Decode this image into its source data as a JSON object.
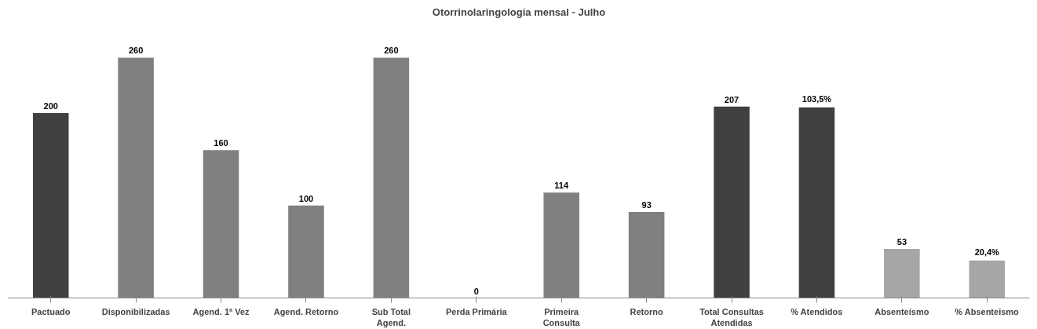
{
  "chart_data": {
    "type": "bar",
    "title": "Otorrinolaringologia mensal - Julho",
    "categories": [
      "Pactuado",
      "Disponibilizadas",
      "Agend. 1ª Vez",
      "Agend. Retorno",
      "Sub Total Agend.",
      "Perda Primária",
      "Primeira Consulta",
      "Retorno",
      "Total Consultas Atendidas",
      "% Atendidos",
      "Absenteísmo",
      "% Absenteismo"
    ],
    "series": [
      {
        "axis": "y",
        "colors": [
          "#404040",
          "#808080",
          "#808080",
          "#808080",
          "#808080",
          "#808080",
          "#808080",
          "#808080",
          "#404040",
          null,
          "#a6a6a6",
          null
        ],
        "values": [
          200,
          260,
          160,
          100,
          260,
          0,
          114,
          93,
          207,
          null,
          53,
          null
        ],
        "value_labels": [
          "200",
          "260",
          "160",
          "100",
          "260",
          "0",
          "114",
          "93",
          "207",
          null,
          "53",
          null
        ]
      },
      {
        "axis": "y2",
        "colors": [
          null,
          null,
          null,
          null,
          null,
          null,
          null,
          null,
          null,
          "#404040",
          null,
          "#a6a6a6"
        ],
        "values": [
          null,
          null,
          null,
          null,
          null,
          null,
          null,
          null,
          null,
          103.5,
          null,
          20.4
        ],
        "value_labels": [
          null,
          null,
          null,
          null,
          null,
          null,
          null,
          null,
          null,
          "103,5%",
          null,
          "20,4%"
        ]
      }
    ],
    "grid": false
  }
}
